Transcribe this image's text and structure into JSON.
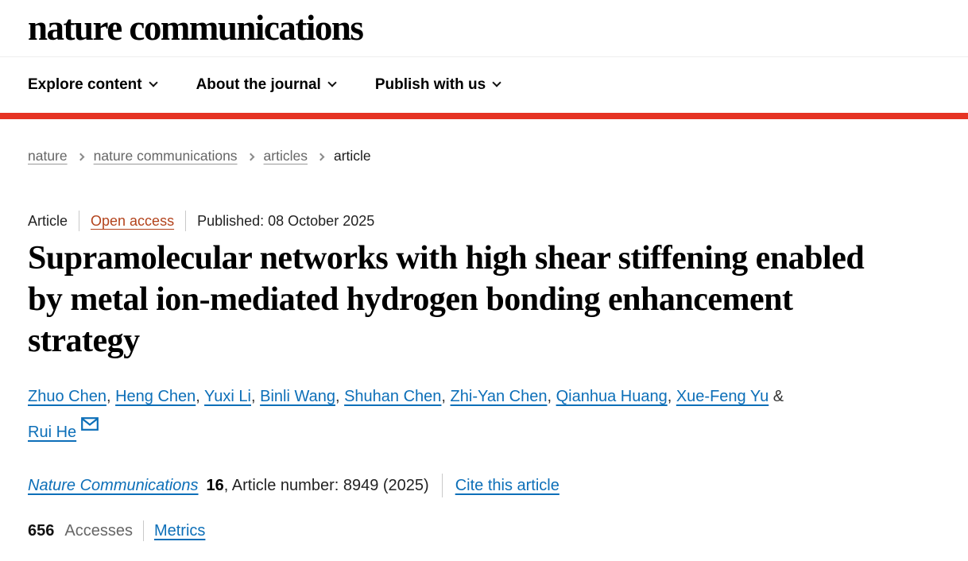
{
  "header": {
    "logo_text": "nature communications"
  },
  "nav": {
    "items": [
      {
        "label": "Explore content"
      },
      {
        "label": "About the journal"
      },
      {
        "label": "Publish with us"
      }
    ]
  },
  "breadcrumb": {
    "items": [
      "nature",
      "nature communications",
      "articles",
      "article"
    ]
  },
  "article": {
    "type_label": "Article",
    "access_label": "Open access",
    "published_text": "Published: 08 October 2025",
    "title": "Supramolecular networks with high shear stiffening enabled by metal ion-mediated hydrogen bonding enhancement strategy",
    "authors": [
      "Zhuo Chen",
      "Heng Chen",
      "Yuxi Li",
      "Binli Wang",
      "Shuhan Chen",
      "Zhi-Yan Chen",
      "Qianhua Huang",
      "Xue-Feng Yu",
      "Rui He"
    ],
    "author_separator": ", ",
    "author_conjunction": "&",
    "citation": {
      "journal": "Nature Communications",
      "volume": "16",
      "rest": ", Article number: 8949 (2025)",
      "cite_link": "Cite this article"
    },
    "metrics": {
      "accesses_value": "656",
      "accesses_label": "Accesses",
      "metrics_link": "Metrics"
    }
  },
  "colors": {
    "brand_red": "#e63323",
    "link_blue": "#0d6fb8",
    "open_access_red": "#b3431c",
    "muted_gray": "#666666"
  }
}
